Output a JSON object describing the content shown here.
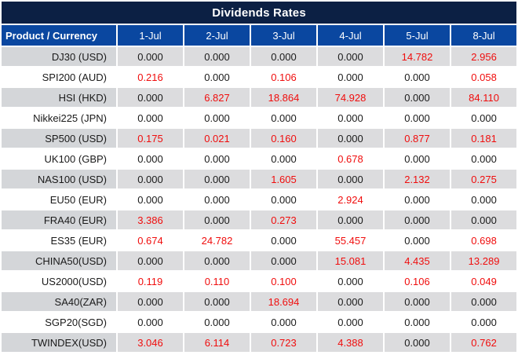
{
  "title": "Dividends Rates",
  "colors": {
    "title_bg": "#0c2044",
    "header_bg": "#0a47a0",
    "label_gray": "#d4d6d9",
    "value_gray": "#dcdcde",
    "value_red": "#f00d0d",
    "text_black": "#1a1a1a"
  },
  "chart_data": {
    "type": "table",
    "title": "Dividends Rates",
    "label_header": "Product / Currency",
    "date_headers": [
      "1-Jul",
      "2-Jul",
      "3-Jul",
      "4-Jul",
      "5-Jul",
      "8-Jul"
    ],
    "rows": [
      {
        "product": "DJ30 (USD)",
        "values": [
          "0.000",
          "0.000",
          "0.000",
          "0.000",
          "14.782",
          "2.956"
        ],
        "red": [
          false,
          false,
          false,
          false,
          true,
          true
        ]
      },
      {
        "product": "SPI200 (AUD)",
        "values": [
          "0.216",
          "0.000",
          "0.106",
          "0.000",
          "0.000",
          "0.058"
        ],
        "red": [
          true,
          false,
          true,
          false,
          false,
          true
        ]
      },
      {
        "product": "HSI (HKD)",
        "values": [
          "0.000",
          "6.827",
          "18.864",
          "74.928",
          "0.000",
          "84.110"
        ],
        "red": [
          false,
          true,
          true,
          true,
          false,
          true
        ]
      },
      {
        "product": "Nikkei225 (JPN)",
        "values": [
          "0.000",
          "0.000",
          "0.000",
          "0.000",
          "0.000",
          "0.000"
        ],
        "red": [
          false,
          false,
          false,
          false,
          false,
          false
        ]
      },
      {
        "product": "SP500 (USD)",
        "values": [
          "0.175",
          "0.021",
          "0.160",
          "0.000",
          "0.877",
          "0.181"
        ],
        "red": [
          true,
          true,
          true,
          false,
          true,
          true
        ]
      },
      {
        "product": "UK100 (GBP)",
        "values": [
          "0.000",
          "0.000",
          "0.000",
          "0.678",
          "0.000",
          "0.000"
        ],
        "red": [
          false,
          false,
          false,
          true,
          false,
          false
        ]
      },
      {
        "product": "NAS100 (USD)",
        "values": [
          "0.000",
          "0.000",
          "1.605",
          "0.000",
          "2.132",
          "0.275"
        ],
        "red": [
          false,
          false,
          true,
          false,
          true,
          true
        ]
      },
      {
        "product": "EU50 (EUR)",
        "values": [
          "0.000",
          "0.000",
          "0.000",
          "2.924",
          "0.000",
          "0.000"
        ],
        "red": [
          false,
          false,
          false,
          true,
          false,
          false
        ]
      },
      {
        "product": "FRA40 (EUR)",
        "values": [
          "3.386",
          "0.000",
          "0.273",
          "0.000",
          "0.000",
          "0.000"
        ],
        "red": [
          true,
          false,
          true,
          false,
          false,
          false
        ]
      },
      {
        "product": "ES35 (EUR)",
        "values": [
          "0.674",
          "24.782",
          "0.000",
          "55.457",
          "0.000",
          "0.698"
        ],
        "red": [
          true,
          true,
          false,
          true,
          false,
          true
        ]
      },
      {
        "product": "CHINA50(USD)",
        "values": [
          "0.000",
          "0.000",
          "0.000",
          "15.081",
          "4.435",
          "13.289"
        ],
        "red": [
          false,
          false,
          false,
          true,
          true,
          true
        ]
      },
      {
        "product": "US2000(USD)",
        "values": [
          "0.119",
          "0.110",
          "0.100",
          "0.000",
          "0.106",
          "0.049"
        ],
        "red": [
          true,
          true,
          true,
          false,
          true,
          true
        ]
      },
      {
        "product": "SA40(ZAR)",
        "values": [
          "0.000",
          "0.000",
          "18.694",
          "0.000",
          "0.000",
          "0.000"
        ],
        "red": [
          false,
          false,
          true,
          false,
          false,
          false
        ]
      },
      {
        "product": "SGP20(SGD)",
        "values": [
          "0.000",
          "0.000",
          "0.000",
          "0.000",
          "0.000",
          "0.000"
        ],
        "red": [
          false,
          false,
          false,
          false,
          false,
          false
        ]
      },
      {
        "product": "TWINDEX(USD)",
        "values": [
          "3.046",
          "6.114",
          "0.723",
          "4.388",
          "0.000",
          "0.762"
        ],
        "red": [
          true,
          true,
          true,
          true,
          false,
          true
        ]
      }
    ]
  }
}
